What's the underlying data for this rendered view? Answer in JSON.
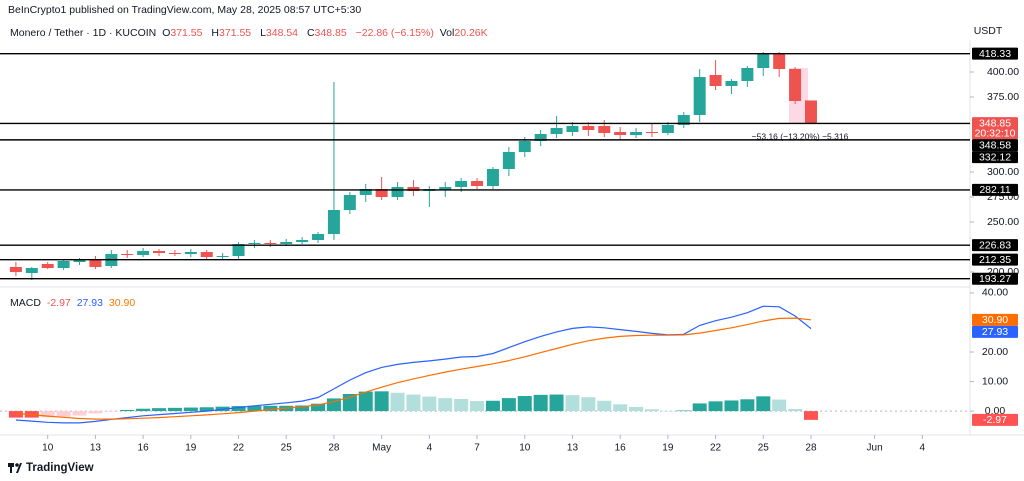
{
  "header": {
    "publisher": "BeInCrypto1 published on TradingView.com, May 28, 2025 08:57 UTC+5:30"
  },
  "chart_data": [
    {
      "type": "candlestick",
      "title": "Monero / Tether · 1D · KUCOIN",
      "ohlc_prefixes": [
        "O",
        "H",
        "L",
        "C"
      ],
      "change": "−22.86 (−6.15%)",
      "volume_prefix": "Vol",
      "volume": "20.26K",
      "currency": "USDT",
      "countdown": "20:32:10",
      "annotation": "−53.16 (−13.20%) −5,316",
      "up_color": "#26a69a",
      "down_color": "#ef5350",
      "level_color": "#000000",
      "xlim": [
        -1,
        60
      ],
      "ylim": [
        187,
        428
      ],
      "xticks": [
        {
          "value": 2,
          "label": "10"
        },
        {
          "value": 5,
          "label": "13"
        },
        {
          "value": 8,
          "label": "16"
        },
        {
          "value": 11,
          "label": "19"
        },
        {
          "value": 14,
          "label": "22"
        },
        {
          "value": 17,
          "label": "25"
        },
        {
          "value": 20,
          "label": "28"
        },
        {
          "value": 23,
          "label": "May"
        },
        {
          "value": 26,
          "label": "4"
        },
        {
          "value": 29,
          "label": "7"
        },
        {
          "value": 32,
          "label": "10"
        },
        {
          "value": 35,
          "label": "13"
        },
        {
          "value": 38,
          "label": "16"
        },
        {
          "value": 41,
          "label": "19"
        },
        {
          "value": 44,
          "label": "22"
        },
        {
          "value": 47,
          "label": "25"
        },
        {
          "value": 50,
          "label": "28"
        },
        {
          "value": 54,
          "label": "Jun"
        },
        {
          "value": 57,
          "label": "4"
        }
      ],
      "yticks": [
        {
          "value": 200,
          "label": "200.00"
        },
        {
          "value": 250,
          "label": "250.00"
        },
        {
          "value": 275,
          "label": "275.00"
        },
        {
          "value": 300,
          "label": "300.00"
        },
        {
          "value": 375,
          "label": "375.00"
        },
        {
          "value": 400,
          "label": "400.00"
        }
      ],
      "levels": [
        418.33,
        348.58,
        332.12,
        282.11,
        226.83,
        212.35,
        193.27
      ],
      "open": [
        205,
        199,
        208,
        204,
        210,
        212,
        206,
        218,
        217,
        221,
        219,
        218,
        220,
        215,
        216,
        228,
        229,
        228,
        230,
        232,
        238,
        262,
        277,
        283,
        275,
        285,
        281,
        282,
        285,
        291,
        286,
        303,
        320,
        331,
        338,
        340,
        346,
        346,
        340,
        337,
        340,
        339,
        347,
        357,
        397,
        386,
        391,
        404,
        418,
        403,
        371.55
      ],
      "high": [
        210,
        205,
        210,
        213,
        214,
        216,
        222,
        222,
        224,
        223,
        222,
        223,
        222,
        219,
        230,
        232,
        232,
        233,
        235,
        240,
        390,
        280,
        288,
        295,
        290,
        292,
        286,
        290,
        294,
        294,
        305,
        325,
        335,
        342,
        356,
        350,
        350,
        352,
        345,
        344,
        348,
        350,
        360,
        403,
        412,
        393,
        406,
        420,
        420,
        405,
        371.55
      ],
      "low": [
        196,
        192,
        203,
        202,
        207,
        203,
        204,
        214,
        215,
        216,
        216,
        215,
        213,
        212,
        213,
        224,
        225,
        226,
        228,
        229,
        232,
        258,
        270,
        272,
        272,
        276,
        265,
        275,
        280,
        283,
        283,
        296,
        315,
        326,
        334,
        336,
        336,
        335,
        333,
        334,
        335,
        337,
        344,
        350,
        382,
        378,
        385,
        396,
        395,
        368,
        348.54
      ],
      "close": [
        200,
        204,
        204,
        211,
        212,
        205,
        218,
        217,
        221,
        219,
        218,
        220,
        215,
        216,
        228,
        229,
        228,
        230,
        232,
        238,
        262,
        277,
        283,
        275,
        285,
        281,
        283,
        285,
        291,
        286,
        303,
        320,
        331,
        338,
        344,
        346,
        342,
        339,
        337,
        340,
        339,
        347,
        357,
        395,
        386,
        391,
        404,
        418,
        403,
        371,
        348.85
      ]
    },
    {
      "type": "macd",
      "title": "MACD",
      "xlim": [
        -1,
        60
      ],
      "ylim": [
        -6.4,
        41
      ],
      "yticks": [
        {
          "value": 0,
          "label": "0.00"
        },
        {
          "value": 10,
          "label": "10.00"
        },
        {
          "value": 20,
          "label": "20.00"
        },
        {
          "value": 40,
          "label": "40.00"
        }
      ],
      "last_value_labels": {
        "histogram": "-2.97",
        "macd": "27.93",
        "signal": "30.90"
      },
      "histogram": {
        "colors": {
          "up_grow": "#26a69a",
          "up_fall": "#b2dfdb",
          "down_grow": "#ffcdd2",
          "down_fall": "#ff5252"
        },
        "values": [
          -2.2,
          -2.2,
          -2.1,
          -1.9,
          -1.5,
          -0.8,
          -0.1,
          0.4,
          0.8,
          1.0,
          1.1,
          1.2,
          1.3,
          1.5,
          1.7,
          1.8,
          1.8,
          1.8,
          1.9,
          2.5,
          4.3,
          5.8,
          6.6,
          6.7,
          6.2,
          5.6,
          4.9,
          4.4,
          4.1,
          3.4,
          3.5,
          4.4,
          5.1,
          5.5,
          5.6,
          5.4,
          4.7,
          3.5,
          2.3,
          1.4,
          0.6,
          0.1,
          0.2,
          2.6,
          3.3,
          3.6,
          4.0,
          5.0,
          3.9,
          0.7,
          -2.97
        ]
      },
      "macd": {
        "color": "#2962ff",
        "values": [
          -3.0,
          -3.4,
          -3.8,
          -4.0,
          -4.0,
          -3.5,
          -2.8,
          -2.2,
          -1.6,
          -1.2,
          -0.8,
          -0.4,
          0.0,
          0.6,
          1.2,
          1.8,
          2.3,
          2.8,
          3.4,
          4.6,
          7.5,
          10.5,
          13.0,
          14.8,
          15.8,
          16.5,
          17.0,
          17.6,
          18.3,
          18.5,
          19.5,
          21.5,
          23.5,
          25.3,
          26.8,
          28.0,
          28.5,
          28.2,
          27.6,
          27.0,
          26.3,
          25.8,
          26.0,
          29.0,
          30.6,
          31.8,
          33.3,
          35.5,
          35.3,
          32.2,
          27.93
        ]
      },
      "signal": {
        "color": "#ff6d00",
        "values": [
          -0.8,
          -1.2,
          -1.7,
          -2.1,
          -2.5,
          -2.7,
          -2.7,
          -2.6,
          -2.4,
          -2.2,
          -1.9,
          -1.6,
          -1.3,
          -0.9,
          -0.5,
          0,
          0.5,
          1.0,
          1.5,
          2.1,
          3.2,
          4.7,
          6.4,
          8.1,
          9.6,
          10.9,
          12.1,
          13.2,
          14.2,
          15.1,
          16.0,
          17.1,
          18.4,
          19.8,
          21.2,
          22.6,
          23.8,
          24.7,
          25.3,
          25.6,
          25.7,
          25.7,
          25.8,
          26.4,
          27.3,
          28.2,
          29.3,
          30.5,
          31.4,
          31.5,
          30.9
        ]
      }
    }
  ],
  "footer": {
    "brand": "TradingView"
  }
}
